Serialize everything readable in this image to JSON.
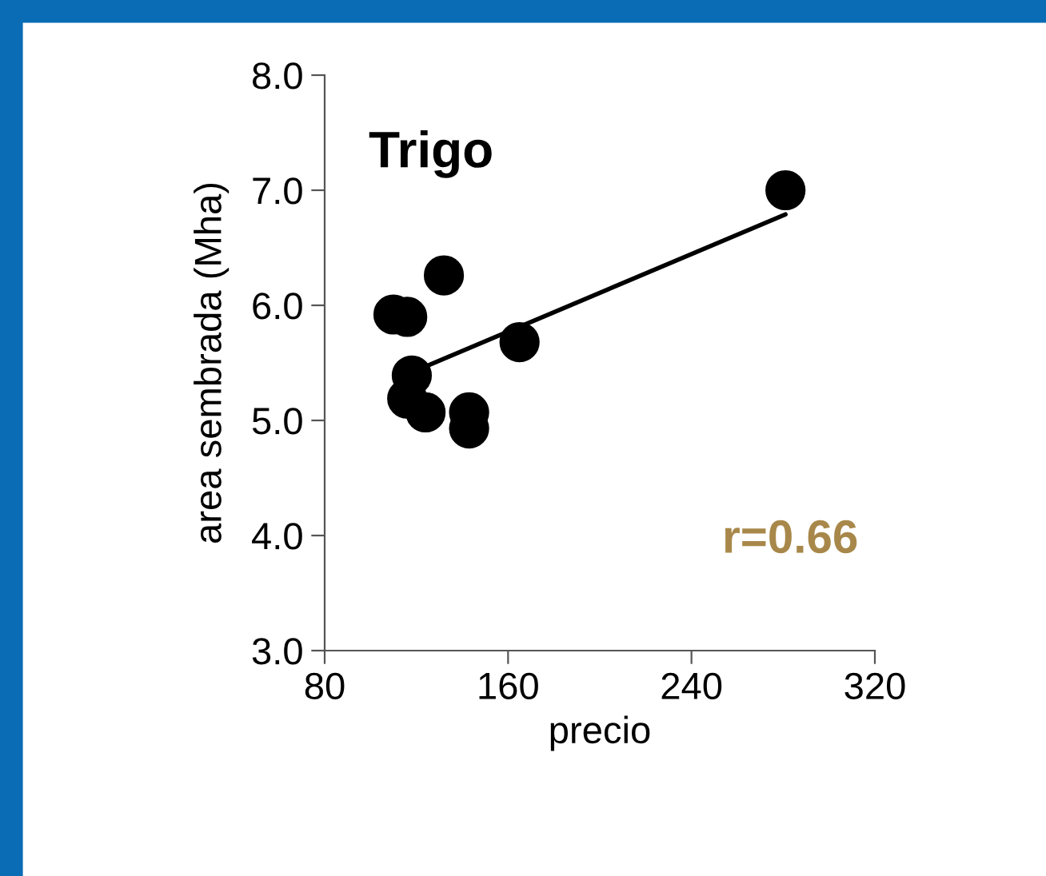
{
  "chart_data": {
    "type": "scatter",
    "title": "Trigo",
    "xlabel": "precio",
    "ylabel": "area sembrada (Mha)",
    "xlim": [
      80,
      320
    ],
    "xticks": [
      80,
      160,
      240,
      320
    ],
    "ylim": [
      3.0,
      8.0
    ],
    "yticks": [
      {
        "value": 3,
        "label": "3.0"
      },
      {
        "value": 4,
        "label": "4.0"
      },
      {
        "value": 5,
        "label": "5.0"
      },
      {
        "value": 6,
        "label": "6.0"
      },
      {
        "value": 7,
        "label": "7.0"
      },
      {
        "value": 8,
        "label": "8.0"
      }
    ],
    "grid": false,
    "marker": "circle",
    "series": [
      {
        "type": "scatter",
        "color": "#000000",
        "x": [
          110,
          116,
          132,
          118,
          116,
          124,
          143,
          143,
          165,
          281
        ],
        "values": [
          5.92,
          5.9,
          6.26,
          5.39,
          5.19,
          5.07,
          5.07,
          4.93,
          5.68,
          7.0
        ]
      },
      {
        "type": "line",
        "color": "#000000",
        "x": [
          123,
          281
        ],
        "values": [
          5.46,
          6.79
        ],
        "marker": "none",
        "line_style": "solid"
      }
    ],
    "annotations": [
      "r=0.66"
    ]
  }
}
